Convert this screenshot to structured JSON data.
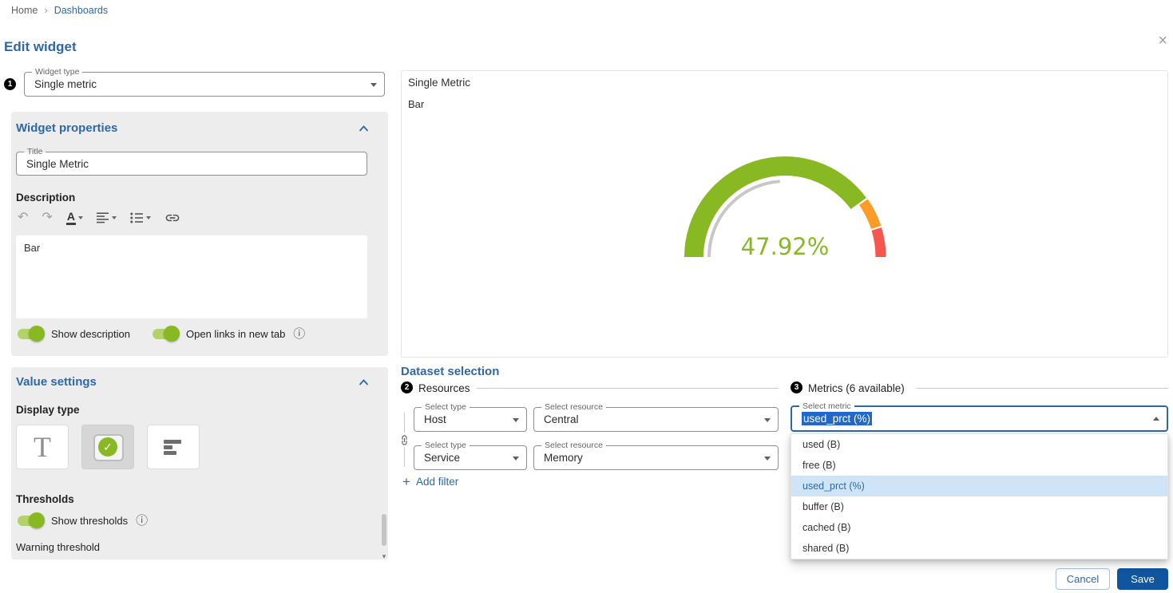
{
  "colors": {
    "primary": "#2e68aa",
    "save_button_bg": "#10559e",
    "success_green": "#88b922",
    "toggle_track_green": "#b4d16a",
    "gauge_warning_orange": "#fd9b27",
    "gauge_critical_red": "#f7564f",
    "panel_background": "#ededed",
    "text_selection_bg": "#2268c9",
    "option_selected_bg": "#cfe4f7"
  },
  "icons": {
    "close": "×",
    "undo": "↶",
    "redo": "↷",
    "info": "ⓘ",
    "check": "✓",
    "add": "+",
    "breadcrumb_separator": "›",
    "scroll_down": "▾",
    "text_color_letter": "A"
  },
  "breadcrumb": {
    "items": [
      {
        "label": "Home"
      },
      {
        "label": "Dashboards"
      }
    ]
  },
  "page": {
    "title": "Edit widget"
  },
  "widget_type": {
    "step": "1",
    "label": "Widget type",
    "value": "Single metric"
  },
  "widget_properties": {
    "section_title": "Widget properties",
    "title_field": {
      "label": "Title",
      "value": "Single Metric"
    },
    "description_label": "Description",
    "description_text": "Bar",
    "show_description_label": "Show description",
    "open_links_label": "Open links in new tab"
  },
  "value_settings": {
    "section_title": "Value settings",
    "display_type_label": "Display type",
    "display_options": [
      {
        "name": "text",
        "glyph": "T",
        "selected": false
      },
      {
        "name": "gauge",
        "selected": true
      },
      {
        "name": "bar",
        "selected": false
      }
    ],
    "thresholds_label": "Thresholds",
    "show_thresholds_label": "Show thresholds",
    "warning_threshold_label": "Warning threshold"
  },
  "preview": {
    "title": "Single Metric",
    "description": "Bar",
    "value_display": "47.92%"
  },
  "chart_data": {
    "type": "gauge",
    "title": "Single Metric",
    "value": 47.92,
    "unit": "%",
    "min": 0,
    "max": 100,
    "warning_threshold": 80,
    "critical_threshold": 90
  },
  "dataset_selection": {
    "section_title": "Dataset selection",
    "resources": {
      "step": "2",
      "label": "Resources",
      "rows": [
        {
          "type_label": "Select type",
          "type_value": "Host",
          "resource_label": "Select resource",
          "resource_value": "Central"
        },
        {
          "type_label": "Select type",
          "type_value": "Service",
          "resource_label": "Select resource",
          "resource_value": "Memory"
        }
      ],
      "add_filter_label": "Add filter"
    },
    "metrics": {
      "step": "3",
      "label": "Metrics (6 available)",
      "select_label": "Select metric",
      "select_value": "used_prct (%)",
      "options": [
        "used (B)",
        "free (B)",
        "used_prct (%)",
        "buffer (B)",
        "cached (B)",
        "shared (B)"
      ],
      "selected_option_index": 2
    }
  },
  "footer": {
    "cancel_label": "Cancel",
    "save_label": "Save"
  }
}
